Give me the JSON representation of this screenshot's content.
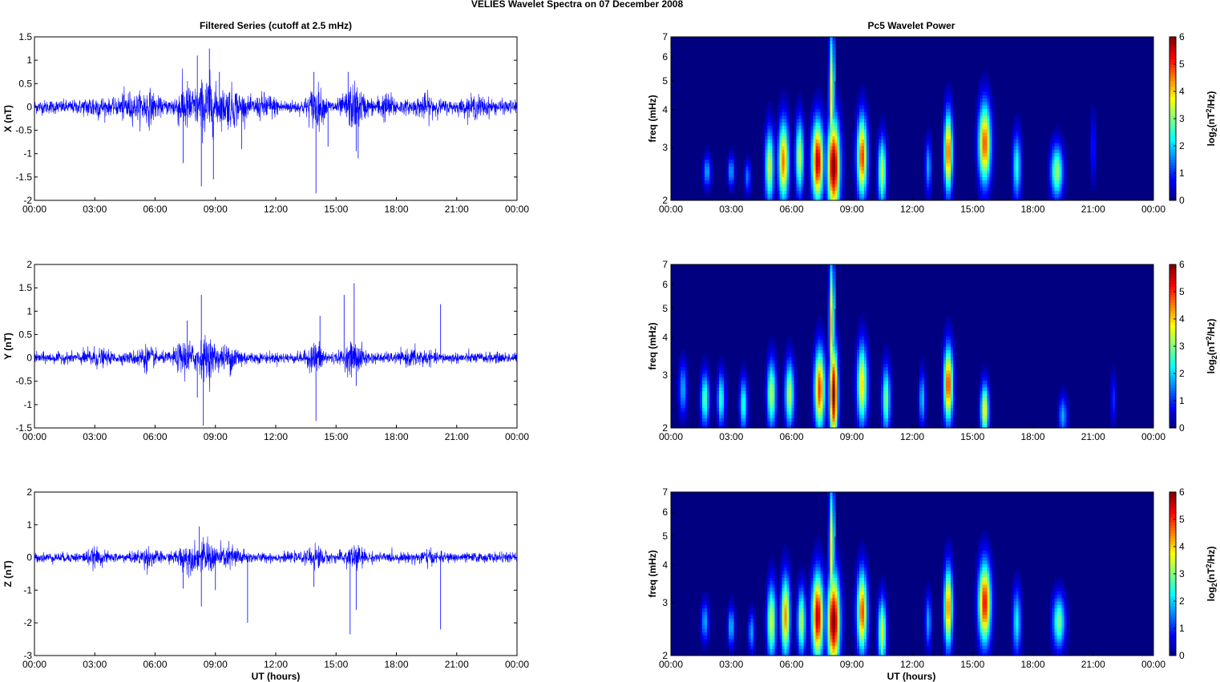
{
  "figure": {
    "suptitle": "VELIES Wavelet Spectra on 07 December  2008",
    "left_title": "Filtered Series (cutoff at 2.5 mHz)",
    "right_title": "Pc5 Wavelet Power",
    "xlabel": "UT (hours)",
    "colors": {
      "trace": "#0000ff",
      "axis": "#000000",
      "background": "#ffffff"
    }
  },
  "chart_data": [
    {
      "type": "line",
      "series": [
        {
          "name": "",
          "color": "#0000ff"
        }
      ],
      "ylabel": "X (nT)",
      "ylim": [
        -2,
        1.5
      ],
      "yticks": [
        "-2",
        "-1.5",
        "-1",
        "-0.5",
        "0",
        "0.5",
        "1",
        "1.5"
      ],
      "xlim": [
        0,
        24
      ],
      "xticks": [
        "00:00",
        "03:00",
        "06:00",
        "09:00",
        "12:00",
        "15:00",
        "18:00",
        "21:00",
        "00:00"
      ],
      "noise_std": 0.09,
      "bursts": [
        {
          "t": 3.0,
          "amp": 0.25,
          "w": 0.5
        },
        {
          "t": 4.6,
          "amp": 0.35,
          "w": 0.4
        },
        {
          "t": 5.6,
          "amp": 0.45,
          "w": 0.5
        },
        {
          "t": 7.5,
          "amp": 0.7,
          "w": 0.5
        },
        {
          "t": 8.6,
          "amp": 0.95,
          "w": 0.5
        },
        {
          "t": 9.8,
          "amp": 0.55,
          "w": 0.6
        },
        {
          "t": 11.5,
          "amp": 0.3,
          "w": 0.5
        },
        {
          "t": 14.0,
          "amp": 0.6,
          "w": 0.4
        },
        {
          "t": 15.9,
          "amp": 0.65,
          "w": 0.5
        },
        {
          "t": 17.5,
          "amp": 0.3,
          "w": 0.5
        },
        {
          "t": 19.5,
          "amp": 0.25,
          "w": 0.5
        },
        {
          "t": 22.0,
          "amp": 0.2,
          "w": 0.6
        }
      ],
      "spikes": [
        {
          "t": 7.4,
          "v": -1.2
        },
        {
          "t": 8.1,
          "v": 1.1
        },
        {
          "t": 8.3,
          "v": -1.7
        },
        {
          "t": 8.7,
          "v": 1.25
        },
        {
          "t": 8.9,
          "v": -1.55
        },
        {
          "t": 9.2,
          "v": 0.75
        },
        {
          "t": 10.3,
          "v": -0.9
        },
        {
          "t": 13.9,
          "v": 0.75
        },
        {
          "t": 14.0,
          "v": -1.85
        },
        {
          "t": 14.6,
          "v": -0.85
        },
        {
          "t": 15.6,
          "v": 0.75
        },
        {
          "t": 16.0,
          "v": -0.95
        },
        {
          "t": 16.1,
          "v": -1.1
        }
      ]
    },
    {
      "type": "line",
      "series": [
        {
          "name": "",
          "color": "#0000ff"
        }
      ],
      "ylabel": "Y (nT)",
      "ylim": [
        -1.5,
        2
      ],
      "yticks": [
        "-1.5",
        "-1",
        "-0.5",
        "0",
        "0.5",
        "1",
        "1.5",
        "2"
      ],
      "xlim": [
        0,
        24
      ],
      "xticks": [
        "00:00",
        "03:00",
        "06:00",
        "09:00",
        "12:00",
        "15:00",
        "18:00",
        "21:00",
        "00:00"
      ],
      "noise_std": 0.07,
      "bursts": [
        {
          "t": 3.0,
          "amp": 0.2,
          "w": 0.6
        },
        {
          "t": 5.5,
          "amp": 0.3,
          "w": 0.5
        },
        {
          "t": 7.5,
          "amp": 0.5,
          "w": 0.5
        },
        {
          "t": 8.6,
          "amp": 0.6,
          "w": 0.5
        },
        {
          "t": 9.8,
          "amp": 0.35,
          "w": 0.6
        },
        {
          "t": 14.0,
          "amp": 0.45,
          "w": 0.4
        },
        {
          "t": 15.9,
          "amp": 0.45,
          "w": 0.5
        },
        {
          "t": 19.0,
          "amp": 0.2,
          "w": 0.6
        }
      ],
      "spikes": [
        {
          "t": 7.6,
          "v": 0.8
        },
        {
          "t": 8.1,
          "v": -0.85
        },
        {
          "t": 8.3,
          "v": 1.35
        },
        {
          "t": 8.4,
          "v": -1.45
        },
        {
          "t": 14.0,
          "v": -1.35
        },
        {
          "t": 14.2,
          "v": 0.9
        },
        {
          "t": 15.4,
          "v": 1.35
        },
        {
          "t": 15.9,
          "v": 1.6
        },
        {
          "t": 16.0,
          "v": -0.6
        },
        {
          "t": 20.2,
          "v": 1.15
        }
      ]
    },
    {
      "type": "line",
      "series": [
        {
          "name": "",
          "color": "#0000ff"
        }
      ],
      "ylabel": "Z (nT)",
      "ylim": [
        -3,
        2
      ],
      "yticks": [
        "-3",
        "-2",
        "-1",
        "0",
        "1",
        "2"
      ],
      "xlim": [
        0,
        24
      ],
      "xticks": [
        "00:00",
        "03:00",
        "06:00",
        "09:00",
        "12:00",
        "15:00",
        "18:00",
        "21:00",
        "00:00"
      ],
      "noise_std": 0.09,
      "bursts": [
        {
          "t": 3.0,
          "amp": 0.25,
          "w": 0.5
        },
        {
          "t": 5.6,
          "amp": 0.35,
          "w": 0.5
        },
        {
          "t": 7.6,
          "amp": 0.55,
          "w": 0.5
        },
        {
          "t": 8.6,
          "amp": 0.65,
          "w": 0.5
        },
        {
          "t": 9.8,
          "amp": 0.45,
          "w": 0.6
        },
        {
          "t": 14.0,
          "amp": 0.45,
          "w": 0.4
        },
        {
          "t": 15.9,
          "amp": 0.5,
          "w": 0.5
        },
        {
          "t": 19.5,
          "amp": 0.2,
          "w": 0.5
        }
      ],
      "spikes": [
        {
          "t": 7.4,
          "v": -0.95
        },
        {
          "t": 8.2,
          "v": 0.95
        },
        {
          "t": 8.3,
          "v": -1.5
        },
        {
          "t": 9.0,
          "v": -1.0
        },
        {
          "t": 10.6,
          "v": -2.0
        },
        {
          "t": 13.9,
          "v": -0.9
        },
        {
          "t": 15.7,
          "v": -2.35
        },
        {
          "t": 16.0,
          "v": -1.6
        },
        {
          "t": 20.2,
          "v": -2.2
        }
      ]
    },
    {
      "type": "heatmap",
      "ylabel": "freq (mHz)",
      "ylim": [
        2,
        7
      ],
      "yscale": "log",
      "yticks": [
        2,
        3,
        4,
        5,
        6,
        7
      ],
      "xlim": [
        0,
        24
      ],
      "xticks": [
        "00:00",
        "03:00",
        "06:00",
        "09:00",
        "12:00",
        "15:00",
        "18:00",
        "21:00",
        "00:00"
      ],
      "colorbar": {
        "label": "log2(nT2/Hz)",
        "range": [
          0,
          6
        ],
        "ticks": [
          0,
          1,
          2,
          3,
          4,
          5,
          6
        ]
      },
      "blobs": [
        {
          "t": 1.8,
          "f": 2.5,
          "v": 1.8,
          "wt": 0.18,
          "wf": 0.12
        },
        {
          "t": 3.0,
          "f": 2.5,
          "v": 1.8,
          "wt": 0.15,
          "wf": 0.12
        },
        {
          "t": 3.8,
          "f": 2.4,
          "v": 1.5,
          "wt": 0.15,
          "wf": 0.12
        },
        {
          "t": 4.9,
          "f": 2.6,
          "v": 3.5,
          "wt": 0.22,
          "wf": 0.28
        },
        {
          "t": 5.6,
          "f": 2.7,
          "v": 4.6,
          "wt": 0.25,
          "wf": 0.3
        },
        {
          "t": 6.4,
          "f": 2.8,
          "v": 3.5,
          "wt": 0.2,
          "wf": 0.28
        },
        {
          "t": 7.3,
          "f": 2.7,
          "v": 5.7,
          "wt": 0.28,
          "wf": 0.3
        },
        {
          "t": 8.1,
          "f": 2.6,
          "v": 6.2,
          "wt": 0.3,
          "wf": 0.35
        },
        {
          "t": 8.0,
          "f": 4.5,
          "v": 4.0,
          "wt": 0.12,
          "wf": 0.5
        },
        {
          "t": 9.5,
          "f": 2.8,
          "v": 5.0,
          "wt": 0.25,
          "wf": 0.3
        },
        {
          "t": 10.5,
          "f": 2.5,
          "v": 3.5,
          "wt": 0.2,
          "wf": 0.25
        },
        {
          "t": 12.8,
          "f": 2.6,
          "v": 1.8,
          "wt": 0.15,
          "wf": 0.2
        },
        {
          "t": 13.8,
          "f": 2.9,
          "v": 4.8,
          "wt": 0.2,
          "wf": 0.3
        },
        {
          "t": 15.6,
          "f": 3.1,
          "v": 4.8,
          "wt": 0.3,
          "wf": 0.3
        },
        {
          "t": 17.2,
          "f": 2.6,
          "v": 2.5,
          "wt": 0.2,
          "wf": 0.25
        },
        {
          "t": 19.2,
          "f": 2.5,
          "v": 3.2,
          "wt": 0.3,
          "wf": 0.2
        },
        {
          "t": 21.0,
          "f": 3.0,
          "v": 1.0,
          "wt": 0.12,
          "wf": 0.25
        }
      ]
    },
    {
      "type": "heatmap",
      "ylabel": "freq (mHz)",
      "ylim": [
        2,
        7
      ],
      "yscale": "log",
      "yticks": [
        2,
        3,
        4,
        5,
        6,
        7
      ],
      "xlim": [
        0,
        24
      ],
      "xticks": [
        "00:00",
        "03:00",
        "06:00",
        "09:00",
        "12:00",
        "15:00",
        "18:00",
        "21:00",
        "00:00"
      ],
      "colorbar": {
        "label": "log2(nT2/Hz)",
        "range": [
          0,
          6
        ],
        "ticks": [
          0,
          1,
          2,
          3,
          4,
          5,
          6
        ]
      },
      "blobs": [
        {
          "t": 0.6,
          "f": 2.7,
          "v": 1.8,
          "wt": 0.2,
          "wf": 0.2
        },
        {
          "t": 1.7,
          "f": 2.5,
          "v": 2.8,
          "wt": 0.2,
          "wf": 0.2
        },
        {
          "t": 2.5,
          "f": 2.5,
          "v": 2.6,
          "wt": 0.18,
          "wf": 0.2
        },
        {
          "t": 3.6,
          "f": 2.4,
          "v": 2.6,
          "wt": 0.18,
          "wf": 0.2
        },
        {
          "t": 5.0,
          "f": 2.6,
          "v": 3.4,
          "wt": 0.22,
          "wf": 0.25
        },
        {
          "t": 5.9,
          "f": 2.6,
          "v": 3.4,
          "wt": 0.22,
          "wf": 0.25
        },
        {
          "t": 7.4,
          "f": 2.7,
          "v": 5.0,
          "wt": 0.25,
          "wf": 0.3
        },
        {
          "t": 8.1,
          "f": 2.6,
          "v": 6.2,
          "wt": 0.2,
          "wf": 0.35
        },
        {
          "t": 8.0,
          "f": 4.4,
          "v": 4.3,
          "wt": 0.12,
          "wf": 0.5
        },
        {
          "t": 9.5,
          "f": 2.8,
          "v": 4.0,
          "wt": 0.25,
          "wf": 0.3
        },
        {
          "t": 10.7,
          "f": 2.5,
          "v": 3.0,
          "wt": 0.2,
          "wf": 0.25
        },
        {
          "t": 12.5,
          "f": 2.5,
          "v": 2.0,
          "wt": 0.15,
          "wf": 0.2
        },
        {
          "t": 13.8,
          "f": 2.8,
          "v": 5.0,
          "wt": 0.22,
          "wf": 0.28
        },
        {
          "t": 15.6,
          "f": 2.3,
          "v": 3.8,
          "wt": 0.2,
          "wf": 0.2
        },
        {
          "t": 19.5,
          "f": 2.2,
          "v": 1.8,
          "wt": 0.2,
          "wf": 0.15
        },
        {
          "t": 22.0,
          "f": 2.5,
          "v": 1.0,
          "wt": 0.12,
          "wf": 0.2
        }
      ]
    },
    {
      "type": "heatmap",
      "ylabel": "freq (mHz)",
      "ylim": [
        2,
        7
      ],
      "yscale": "log",
      "yticks": [
        2,
        3,
        4,
        5,
        6,
        7
      ],
      "xlim": [
        0,
        24
      ],
      "xticks": [
        "00:00",
        "03:00",
        "06:00",
        "09:00",
        "12:00",
        "15:00",
        "18:00",
        "21:00",
        "00:00"
      ],
      "colorbar": {
        "label": "log2(nT2/Hz)",
        "range": [
          0,
          6
        ],
        "ticks": [
          0,
          1,
          2,
          3,
          4,
          5,
          6
        ]
      },
      "blobs": [
        {
          "t": 1.7,
          "f": 2.6,
          "v": 1.8,
          "wt": 0.18,
          "wf": 0.15
        },
        {
          "t": 3.0,
          "f": 2.5,
          "v": 2.0,
          "wt": 0.15,
          "wf": 0.15
        },
        {
          "t": 4.0,
          "f": 2.4,
          "v": 1.8,
          "wt": 0.15,
          "wf": 0.15
        },
        {
          "t": 5.0,
          "f": 2.6,
          "v": 3.6,
          "wt": 0.22,
          "wf": 0.28
        },
        {
          "t": 5.7,
          "f": 2.7,
          "v": 4.4,
          "wt": 0.22,
          "wf": 0.3
        },
        {
          "t": 6.5,
          "f": 2.6,
          "v": 3.4,
          "wt": 0.2,
          "wf": 0.25
        },
        {
          "t": 7.3,
          "f": 2.7,
          "v": 5.7,
          "wt": 0.28,
          "wf": 0.32
        },
        {
          "t": 8.1,
          "f": 2.6,
          "v": 6.2,
          "wt": 0.3,
          "wf": 0.35
        },
        {
          "t": 8.0,
          "f": 4.5,
          "v": 4.0,
          "wt": 0.12,
          "wf": 0.5
        },
        {
          "t": 9.5,
          "f": 2.8,
          "v": 4.9,
          "wt": 0.25,
          "wf": 0.3
        },
        {
          "t": 10.5,
          "f": 2.4,
          "v": 3.6,
          "wt": 0.2,
          "wf": 0.25
        },
        {
          "t": 12.8,
          "f": 2.6,
          "v": 1.8,
          "wt": 0.15,
          "wf": 0.2
        },
        {
          "t": 13.8,
          "f": 2.9,
          "v": 4.6,
          "wt": 0.2,
          "wf": 0.3
        },
        {
          "t": 15.6,
          "f": 3.0,
          "v": 5.3,
          "wt": 0.3,
          "wf": 0.3
        },
        {
          "t": 17.2,
          "f": 2.6,
          "v": 2.3,
          "wt": 0.2,
          "wf": 0.25
        },
        {
          "t": 19.3,
          "f": 2.6,
          "v": 3.0,
          "wt": 0.3,
          "wf": 0.2
        }
      ]
    }
  ]
}
